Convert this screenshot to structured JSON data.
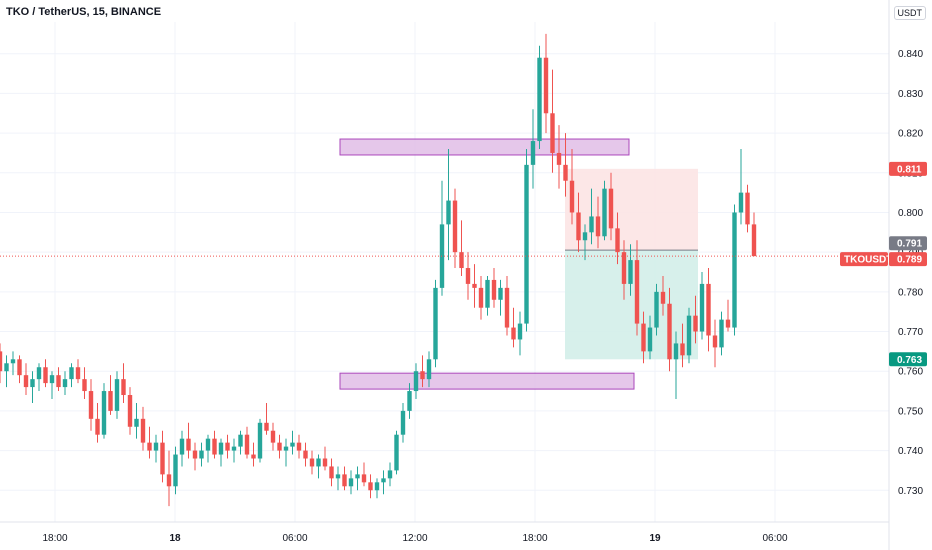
{
  "header": {
    "title": "TKO / TetherUS, 15, BINANCE",
    "unit": "USDT"
  },
  "colors": {
    "up": "#26a69a",
    "down": "#ef5350",
    "zone_fill": "#e1bee7",
    "zone_stroke": "#9c27b0",
    "stop_fill": "#fce4e4",
    "target_fill": "#d3eee9",
    "grid": "#f0f3fa"
  },
  "chart_data": {
    "type": "candlestick",
    "symbol": "TKO / TetherUS",
    "interval": "15",
    "exchange": "BINANCE",
    "ylim": [
      0.722,
      0.848
    ],
    "y_ticks": [
      "0.730",
      "0.740",
      "0.750",
      "0.760",
      "0.770",
      "0.780",
      "0.790",
      "0.800",
      "0.810",
      "0.820",
      "0.830",
      "0.840"
    ],
    "x_ticks": [
      "18:00",
      "18",
      "06:00",
      "12:00",
      "18:00",
      "19",
      "06:00"
    ],
    "candles": [
      [
        0.765,
        0.767,
        0.757,
        0.76
      ],
      [
        0.76,
        0.764,
        0.756,
        0.762
      ],
      [
        0.762,
        0.765,
        0.759,
        0.763
      ],
      [
        0.763,
        0.764,
        0.757,
        0.759
      ],
      [
        0.759,
        0.762,
        0.754,
        0.756
      ],
      [
        0.756,
        0.76,
        0.752,
        0.758
      ],
      [
        0.758,
        0.762,
        0.755,
        0.761
      ],
      [
        0.761,
        0.763,
        0.756,
        0.757
      ],
      [
        0.757,
        0.76,
        0.753,
        0.759
      ],
      [
        0.759,
        0.761,
        0.755,
        0.756
      ],
      [
        0.756,
        0.76,
        0.754,
        0.758
      ],
      [
        0.758,
        0.762,
        0.756,
        0.761
      ],
      [
        0.761,
        0.763,
        0.757,
        0.758
      ],
      [
        0.758,
        0.761,
        0.753,
        0.755
      ],
      [
        0.755,
        0.758,
        0.745,
        0.748
      ],
      [
        0.748,
        0.752,
        0.742,
        0.744
      ],
      [
        0.744,
        0.757,
        0.743,
        0.755
      ],
      [
        0.755,
        0.759,
        0.749,
        0.75
      ],
      [
        0.75,
        0.76,
        0.748,
        0.758
      ],
      [
        0.758,
        0.762,
        0.752,
        0.754
      ],
      [
        0.754,
        0.756,
        0.744,
        0.746
      ],
      [
        0.746,
        0.752,
        0.743,
        0.748
      ],
      [
        0.748,
        0.751,
        0.74,
        0.742
      ],
      [
        0.742,
        0.746,
        0.738,
        0.74
      ],
      [
        0.74,
        0.744,
        0.737,
        0.742
      ],
      [
        0.742,
        0.745,
        0.732,
        0.734
      ],
      [
        0.734,
        0.74,
        0.726,
        0.731
      ],
      [
        0.731,
        0.741,
        0.729,
        0.739
      ],
      [
        0.739,
        0.745,
        0.736,
        0.743
      ],
      [
        0.743,
        0.747,
        0.738,
        0.74
      ],
      [
        0.74,
        0.742,
        0.735,
        0.738
      ],
      [
        0.738,
        0.742,
        0.736,
        0.74
      ],
      [
        0.74,
        0.744,
        0.737,
        0.743
      ],
      [
        0.743,
        0.745,
        0.738,
        0.739
      ],
      [
        0.739,
        0.743,
        0.736,
        0.742
      ],
      [
        0.742,
        0.744,
        0.738,
        0.74
      ],
      [
        0.74,
        0.743,
        0.737,
        0.741
      ],
      [
        0.741,
        0.745,
        0.739,
        0.744
      ],
      [
        0.744,
        0.746,
        0.738,
        0.739
      ],
      [
        0.739,
        0.742,
        0.736,
        0.738
      ],
      [
        0.738,
        0.748,
        0.737,
        0.747
      ],
      [
        0.747,
        0.752,
        0.744,
        0.745
      ],
      [
        0.745,
        0.747,
        0.74,
        0.742
      ],
      [
        0.742,
        0.744,
        0.738,
        0.74
      ],
      [
        0.74,
        0.743,
        0.736,
        0.741
      ],
      [
        0.741,
        0.745,
        0.739,
        0.742
      ],
      [
        0.742,
        0.744,
        0.738,
        0.74
      ],
      [
        0.74,
        0.742,
        0.736,
        0.738
      ],
      [
        0.738,
        0.74,
        0.734,
        0.736
      ],
      [
        0.736,
        0.739,
        0.733,
        0.738
      ],
      [
        0.738,
        0.741,
        0.735,
        0.736
      ],
      [
        0.736,
        0.738,
        0.731,
        0.733
      ],
      [
        0.733,
        0.736,
        0.73,
        0.734
      ],
      [
        0.734,
        0.736,
        0.73,
        0.731
      ],
      [
        0.731,
        0.735,
        0.729,
        0.733
      ],
      [
        0.733,
        0.736,
        0.73,
        0.734
      ],
      [
        0.734,
        0.737,
        0.731,
        0.732
      ],
      [
        0.732,
        0.734,
        0.728,
        0.73
      ],
      [
        0.73,
        0.733,
        0.728,
        0.732
      ],
      [
        0.732,
        0.735,
        0.729,
        0.733
      ],
      [
        0.733,
        0.737,
        0.731,
        0.735
      ],
      [
        0.735,
        0.745,
        0.734,
        0.744
      ],
      [
        0.744,
        0.752,
        0.742,
        0.75
      ],
      [
        0.75,
        0.757,
        0.748,
        0.755
      ],
      [
        0.755,
        0.762,
        0.753,
        0.76
      ],
      [
        0.76,
        0.764,
        0.756,
        0.758
      ],
      [
        0.758,
        0.765,
        0.756,
        0.763
      ],
      [
        0.763,
        0.783,
        0.761,
        0.781
      ],
      [
        0.781,
        0.808,
        0.779,
        0.797
      ],
      [
        0.797,
        0.816,
        0.788,
        0.803
      ],
      [
        0.803,
        0.806,
        0.786,
        0.79
      ],
      [
        0.79,
        0.798,
        0.784,
        0.786
      ],
      [
        0.786,
        0.79,
        0.778,
        0.782
      ],
      [
        0.782,
        0.787,
        0.776,
        0.781
      ],
      [
        0.781,
        0.784,
        0.773,
        0.776
      ],
      [
        0.776,
        0.784,
        0.774,
        0.783
      ],
      [
        0.783,
        0.786,
        0.776,
        0.778
      ],
      [
        0.778,
        0.783,
        0.774,
        0.781
      ],
      [
        0.781,
        0.784,
        0.769,
        0.771
      ],
      [
        0.771,
        0.776,
        0.766,
        0.768
      ],
      [
        0.768,
        0.775,
        0.764,
        0.772
      ],
      [
        0.772,
        0.816,
        0.77,
        0.812
      ],
      [
        0.812,
        0.826,
        0.806,
        0.818
      ],
      [
        0.818,
        0.842,
        0.816,
        0.839
      ],
      [
        0.839,
        0.845,
        0.82,
        0.825
      ],
      [
        0.825,
        0.836,
        0.81,
        0.815
      ],
      [
        0.815,
        0.822,
        0.806,
        0.812
      ],
      [
        0.812,
        0.82,
        0.804,
        0.808
      ],
      [
        0.808,
        0.816,
        0.797,
        0.8
      ],
      [
        0.8,
        0.805,
        0.79,
        0.793
      ],
      [
        0.793,
        0.797,
        0.788,
        0.795
      ],
      [
        0.795,
        0.806,
        0.792,
        0.799
      ],
      [
        0.799,
        0.804,
        0.791,
        0.794
      ],
      [
        0.794,
        0.808,
        0.793,
        0.806
      ],
      [
        0.806,
        0.81,
        0.793,
        0.796
      ],
      [
        0.796,
        0.8,
        0.787,
        0.79
      ],
      [
        0.79,
        0.793,
        0.778,
        0.782
      ],
      [
        0.782,
        0.792,
        0.779,
        0.788
      ],
      [
        0.788,
        0.793,
        0.769,
        0.772
      ],
      [
        0.772,
        0.775,
        0.762,
        0.765
      ],
      [
        0.765,
        0.774,
        0.763,
        0.771
      ],
      [
        0.771,
        0.782,
        0.769,
        0.78
      ],
      [
        0.78,
        0.784,
        0.774,
        0.777
      ],
      [
        0.777,
        0.781,
        0.76,
        0.763
      ],
      [
        0.763,
        0.77,
        0.753,
        0.767
      ],
      [
        0.767,
        0.772,
        0.761,
        0.764
      ],
      [
        0.764,
        0.776,
        0.762,
        0.774
      ],
      [
        0.774,
        0.779,
        0.767,
        0.77
      ],
      [
        0.77,
        0.785,
        0.768,
        0.782
      ],
      [
        0.782,
        0.786,
        0.765,
        0.769
      ],
      [
        0.769,
        0.773,
        0.761,
        0.766
      ],
      [
        0.766,
        0.775,
        0.764,
        0.773
      ],
      [
        0.773,
        0.778,
        0.77,
        0.771
      ],
      [
        0.771,
        0.802,
        0.769,
        0.8
      ],
      [
        0.8,
        0.816,
        0.797,
        0.805
      ],
      [
        0.805,
        0.807,
        0.795,
        0.797
      ],
      [
        0.797,
        0.8,
        0.789,
        0.789
      ]
    ],
    "resistance_zone": {
      "low": 0.8155,
      "high": 0.8175
    },
    "support_zone": {
      "low": 0.7565,
      "high": 0.7585
    },
    "position": {
      "entry": 0.7905,
      "stop": 0.811,
      "target": 0.763
    },
    "price_tags": [
      {
        "label": "0.811",
        "value": 0.811,
        "color": "#ef5350"
      },
      {
        "label": "0.791",
        "value": 0.791,
        "color": "#787b86"
      },
      {
        "label": "TKOUSDT",
        "value": 0.789,
        "color": "#ef5350",
        "symbol_tag": true
      },
      {
        "label": "0.789",
        "value": 0.789,
        "color": "#ef5350"
      },
      {
        "label": "0.763",
        "value": 0.763,
        "color": "#089981"
      }
    ]
  }
}
